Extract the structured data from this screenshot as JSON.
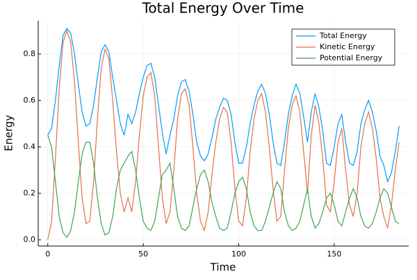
{
  "chart_data": {
    "type": "line",
    "title": "Total Energy Over Time",
    "x_label": "Time",
    "y_label": "Energy",
    "x": [
      0,
      2,
      4,
      6,
      8,
      10,
      12,
      14,
      16,
      18,
      20,
      22,
      24,
      26,
      28,
      30,
      32,
      34,
      36,
      38,
      40,
      42,
      44,
      46,
      48,
      50,
      52,
      54,
      56,
      58,
      60,
      62,
      64,
      66,
      68,
      70,
      72,
      74,
      76,
      78,
      80,
      82,
      84,
      86,
      88,
      90,
      92,
      94,
      96,
      98,
      100,
      102,
      104,
      106,
      108,
      110,
      112,
      114,
      116,
      118,
      120,
      122,
      124,
      126,
      128,
      130,
      132,
      134,
      136,
      138,
      140,
      142,
      144,
      146,
      148,
      150,
      152,
      154,
      156,
      158,
      160,
      162,
      164,
      166,
      168,
      170,
      172,
      174,
      176,
      178,
      180,
      182,
      184
    ],
    "series": [
      {
        "name": "Total Energy",
        "color": "#009af9",
        "values": [
          0.45,
          0.48,
          0.6,
          0.75,
          0.88,
          0.91,
          0.89,
          0.8,
          0.67,
          0.55,
          0.49,
          0.5,
          0.58,
          0.7,
          0.81,
          0.84,
          0.81,
          0.7,
          0.6,
          0.5,
          0.45,
          0.54,
          0.5,
          0.55,
          0.63,
          0.7,
          0.75,
          0.76,
          0.7,
          0.58,
          0.46,
          0.37,
          0.45,
          0.52,
          0.62,
          0.68,
          0.69,
          0.64,
          0.54,
          0.42,
          0.36,
          0.34,
          0.37,
          0.44,
          0.52,
          0.57,
          0.61,
          0.6,
          0.54,
          0.42,
          0.33,
          0.33,
          0.4,
          0.5,
          0.58,
          0.64,
          0.67,
          0.63,
          0.54,
          0.42,
          0.33,
          0.32,
          0.42,
          0.54,
          0.62,
          0.67,
          0.63,
          0.53,
          0.42,
          0.55,
          0.63,
          0.57,
          0.47,
          0.33,
          0.32,
          0.4,
          0.5,
          0.54,
          0.42,
          0.33,
          0.32,
          0.38,
          0.5,
          0.56,
          0.6,
          0.55,
          0.47,
          0.36,
          0.32,
          0.25,
          0.29,
          0.38,
          0.49
        ]
      },
      {
        "name": "Kinetic Energy",
        "color": "#e26f46",
        "values": [
          0.0,
          0.08,
          0.35,
          0.65,
          0.85,
          0.9,
          0.85,
          0.68,
          0.42,
          0.18,
          0.07,
          0.08,
          0.25,
          0.52,
          0.74,
          0.82,
          0.78,
          0.6,
          0.38,
          0.2,
          0.12,
          0.18,
          0.12,
          0.25,
          0.45,
          0.62,
          0.7,
          0.72,
          0.62,
          0.4,
          0.18,
          0.07,
          0.12,
          0.3,
          0.52,
          0.63,
          0.65,
          0.58,
          0.4,
          0.2,
          0.08,
          0.04,
          0.12,
          0.28,
          0.42,
          0.52,
          0.57,
          0.55,
          0.42,
          0.22,
          0.08,
          0.06,
          0.18,
          0.38,
          0.52,
          0.6,
          0.63,
          0.55,
          0.4,
          0.22,
          0.08,
          0.1,
          0.3,
          0.48,
          0.58,
          0.62,
          0.55,
          0.38,
          0.2,
          0.45,
          0.58,
          0.5,
          0.35,
          0.15,
          0.12,
          0.25,
          0.42,
          0.48,
          0.3,
          0.15,
          0.1,
          0.2,
          0.4,
          0.5,
          0.55,
          0.48,
          0.35,
          0.18,
          0.1,
          0.05,
          0.15,
          0.3,
          0.42
        ]
      },
      {
        "name": "Potential Energy",
        "color": "#3da44d",
        "values": [
          0.45,
          0.4,
          0.25,
          0.1,
          0.03,
          0.01,
          0.04,
          0.12,
          0.25,
          0.37,
          0.42,
          0.42,
          0.33,
          0.18,
          0.07,
          0.02,
          0.03,
          0.1,
          0.22,
          0.3,
          0.33,
          0.36,
          0.38,
          0.3,
          0.18,
          0.08,
          0.05,
          0.04,
          0.08,
          0.18,
          0.28,
          0.3,
          0.33,
          0.22,
          0.1,
          0.05,
          0.04,
          0.06,
          0.14,
          0.22,
          0.28,
          0.3,
          0.25,
          0.16,
          0.1,
          0.05,
          0.04,
          0.05,
          0.12,
          0.2,
          0.25,
          0.27,
          0.22,
          0.12,
          0.06,
          0.04,
          0.04,
          0.08,
          0.14,
          0.2,
          0.25,
          0.22,
          0.12,
          0.06,
          0.04,
          0.05,
          0.08,
          0.15,
          0.22,
          0.1,
          0.05,
          0.07,
          0.12,
          0.18,
          0.2,
          0.15,
          0.08,
          0.06,
          0.12,
          0.18,
          0.22,
          0.18,
          0.1,
          0.06,
          0.05,
          0.07,
          0.12,
          0.18,
          0.22,
          0.2,
          0.14,
          0.08,
          0.07
        ]
      }
    ],
    "xlim": [
      -5,
      189
    ],
    "ylim": [
      -0.027,
      0.943
    ],
    "xticks": [
      0,
      50,
      100,
      150
    ],
    "yticks": [
      {
        "value": 0,
        "label": "0.0"
      },
      0.2,
      0.4,
      0.6,
      0.8
    ],
    "grid": true,
    "legend": "top-right"
  }
}
